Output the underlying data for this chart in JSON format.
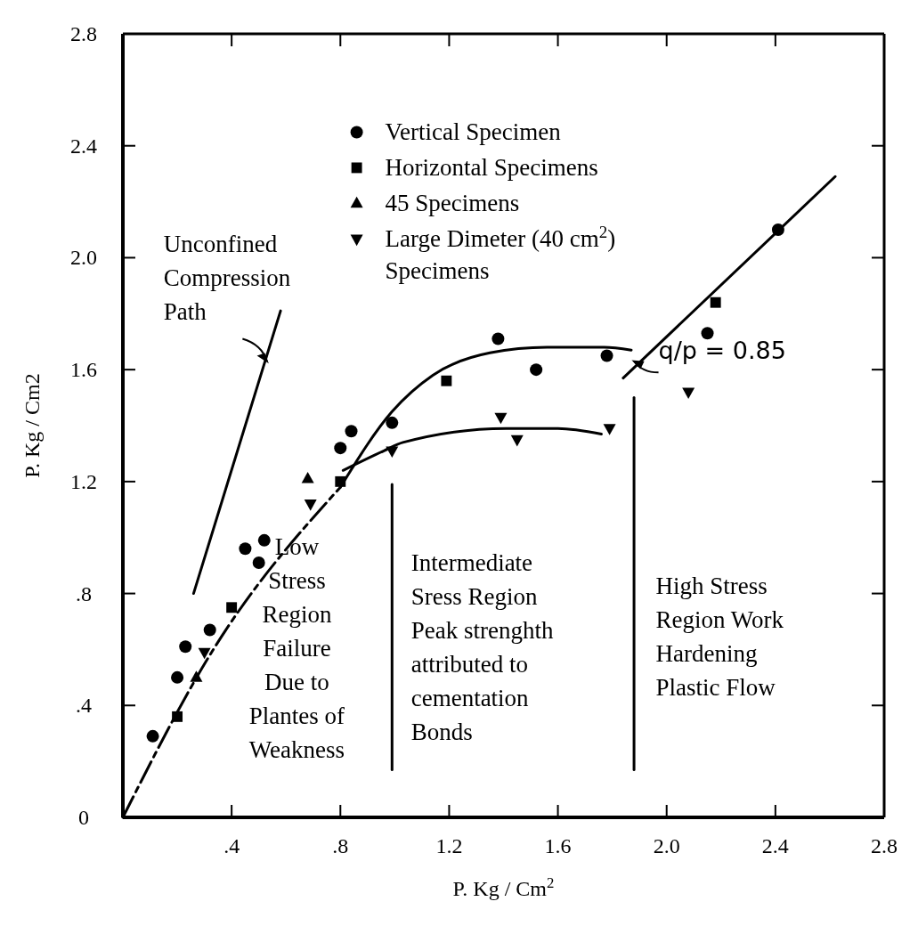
{
  "chart_data": {
    "type": "scatter",
    "xlabel": "P.  Kg / Cm$^{2}$",
    "ylabel": "P.  Kg / Cm2",
    "xlim": [
      0,
      2.8
    ],
    "ylim": [
      0,
      2.8
    ],
    "xticks": [
      {
        "value": 0,
        "label": null
      },
      {
        "value": 0.4,
        "label": ".4"
      },
      {
        "value": 0.8,
        "label": ".8"
      },
      1.2,
      1.6,
      {
        "value": 2.0,
        "label": "2.0"
      },
      2.4,
      2.8
    ],
    "yticks": [
      0,
      {
        "value": 0.4,
        "label": ".4"
      },
      {
        "value": 0.8,
        "label": ".8"
      },
      1.2,
      1.6,
      {
        "value": 2.0,
        "label": "2.0"
      },
      2.4,
      2.8
    ],
    "legend": "top",
    "grid": false,
    "series": [
      {
        "name": "Vertical Specimen",
        "color": "#000000",
        "marker": "circle",
        "x": [
          0.11,
          0.2,
          0.23,
          0.32,
          0.45,
          0.5,
          0.52,
          0.8,
          0.84,
          0.99,
          1.38,
          1.52,
          1.78,
          2.15,
          2.41
        ],
        "values": [
          0.29,
          0.5,
          0.61,
          0.67,
          0.96,
          0.91,
          0.99,
          1.32,
          1.38,
          1.41,
          1.71,
          1.6,
          1.65,
          1.73,
          2.1
        ]
      },
      {
        "name": "Horizontal Specimens",
        "color": "#000000",
        "marker": "square",
        "x": [
          0.2,
          0.4,
          0.8,
          1.19,
          2.18
        ],
        "values": [
          0.36,
          0.75,
          1.2,
          1.56,
          1.84
        ]
      },
      {
        "name": "45 Specimens",
        "color": "#000000",
        "marker": "triangle",
        "x": [
          0.27,
          0.68
        ],
        "values": [
          0.5,
          1.21
        ]
      },
      {
        "name": "Large Dimeter (40 cm$^{2}$)\nSpecimens",
        "color": "#000000",
        "marker": "triangle-down",
        "x": [
          0.3,
          0.69,
          0.99,
          1.39,
          1.45,
          1.79,
          2.08
        ],
        "values": [
          0.59,
          1.12,
          1.31,
          1.43,
          1.35,
          1.39,
          1.52
        ]
      },
      {
        "type": "line",
        "color": "#000000",
        "line_style": "dashed",
        "x": [
          0,
          0.32,
          0.8
        ],
        "values": [
          0,
          0.58,
          1.18
        ]
      },
      {
        "type": "line",
        "color": "#000000",
        "line_style": "solid",
        "x": [
          0.8,
          0.99,
          1.14,
          1.35,
          1.56,
          1.77,
          1.87
        ],
        "values": [
          1.18,
          1.45,
          1.58,
          1.66,
          1.68,
          1.68,
          1.67
        ]
      },
      {
        "type": "line",
        "color": "#000000",
        "line_style": "solid",
        "x": [
          0.81,
          0.96,
          1.03,
          1.41,
          1.6,
          1.76
        ],
        "values": [
          1.24,
          1.31,
          1.34,
          1.39,
          1.39,
          1.37
        ]
      },
      {
        "type": "line",
        "color": "#000000",
        "line_style": "solid",
        "x": [
          1.84,
          2.62
        ],
        "values": [
          1.57,
          2.29
        ]
      },
      {
        "type": "line",
        "color": "#000000",
        "line_style": "solid",
        "x": [
          0.26,
          0.58
        ],
        "values": [
          0.8,
          1.81
        ]
      },
      {
        "type": "line",
        "color": "#000000",
        "line_style": "solid",
        "x": [
          0.99,
          0.99
        ],
        "values": [
          0.17,
          1.19
        ]
      },
      {
        "type": "line",
        "color": "#000000",
        "line_style": "solid",
        "x": [
          1.88,
          1.88
        ],
        "values": [
          0.17,
          1.5
        ]
      }
    ],
    "annotations": [
      "Unconfined\nCompression\nPath",
      "Low\nStress\nRegion\nFailure\nDue to\nPlantes of\nWeakness",
      "Intermediate\nSress Region\nPeak strenghth\nattributed to\ncementation\nBonds",
      "High Stress\nRegion Work\nHardening\nPlastic Flow",
      "q/p = 0.85"
    ]
  }
}
